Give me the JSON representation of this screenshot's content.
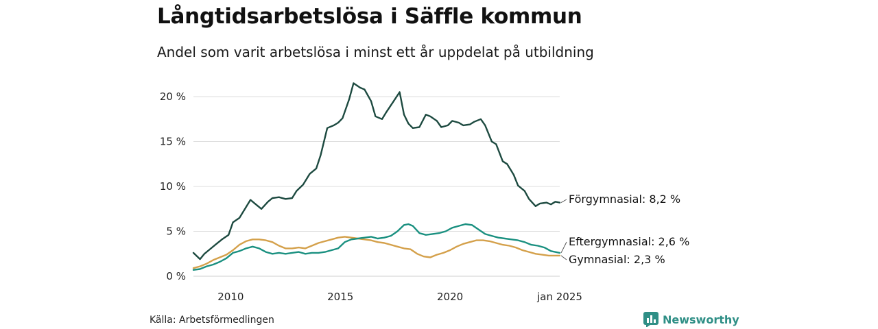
{
  "header": {
    "title": "Långtidsarbetslösa i Säffle kommun",
    "subtitle": "Andel som varit arbetslösa i minst ett år uppdelat på utbildning"
  },
  "footer": {
    "source": "Källa: Arbetsförmedlingen",
    "brand": "Newsworthy"
  },
  "colors": {
    "forgymnasial": "#1d4a40",
    "eftergymnasial": "#1a9080",
    "gymnasial": "#d4a04a",
    "grid": "#dddddd",
    "brand": "#2f8f86"
  },
  "chart_data": {
    "type": "line",
    "title": "Långtidsarbetslösa i Säffle kommun",
    "subtitle": "Andel som varit arbetslösa i minst ett år uppdelat på utbildning",
    "xlabel": "",
    "ylabel": "",
    "xlim": [
      2008.3,
      2025.0
    ],
    "ylim": [
      0,
      22
    ],
    "y_ticks": [
      {
        "value": 0,
        "label": "0 %"
      },
      {
        "value": 5,
        "label": "5 %"
      },
      {
        "value": 10,
        "label": "10 %"
      },
      {
        "value": 15,
        "label": "15 %"
      },
      {
        "value": 20,
        "label": "20 %"
      }
    ],
    "x_ticks": [
      {
        "value": 2010,
        "label": "2010"
      },
      {
        "value": 2015,
        "label": "2015"
      },
      {
        "value": 2020,
        "label": "2020"
      },
      {
        "value": 2025,
        "label": "jan 2025"
      }
    ],
    "grid": true,
    "series": [
      {
        "name": "Förgymnasial",
        "label": "Förgymnasial: 8,2 %",
        "color": "#1d4a40",
        "x": [
          2008.3,
          2008.6,
          2008.8,
          2009.0,
          2009.3,
          2009.6,
          2009.9,
          2010.1,
          2010.4,
          2010.6,
          2010.9,
          2011.1,
          2011.4,
          2011.7,
          2011.9,
          2012.2,
          2012.5,
          2012.8,
          2013.0,
          2013.3,
          2013.6,
          2013.9,
          2014.1,
          2014.4,
          2014.7,
          2014.9,
          2015.1,
          2015.4,
          2015.6,
          2015.9,
          2016.1,
          2016.4,
          2016.6,
          2016.9,
          2017.1,
          2017.4,
          2017.7,
          2017.9,
          2018.1,
          2018.3,
          2018.6,
          2018.9,
          2019.1,
          2019.4,
          2019.6,
          2019.9,
          2020.1,
          2020.4,
          2020.6,
          2020.9,
          2021.1,
          2021.4,
          2021.6,
          2021.9,
          2022.1,
          2022.4,
          2022.6,
          2022.9,
          2023.1,
          2023.4,
          2023.6,
          2023.9,
          2024.1,
          2024.4,
          2024.6,
          2024.8,
          2025.0
        ],
        "values": [
          2.6,
          1.9,
          2.5,
          2.9,
          3.5,
          4.1,
          4.6,
          6.0,
          6.5,
          7.3,
          8.5,
          8.1,
          7.5,
          8.3,
          8.7,
          8.8,
          8.6,
          8.7,
          9.5,
          10.2,
          11.4,
          12.0,
          13.5,
          16.5,
          16.8,
          17.1,
          17.6,
          19.7,
          21.5,
          21.0,
          20.8,
          19.5,
          17.8,
          17.5,
          18.3,
          19.4,
          20.5,
          18.0,
          17.0,
          16.5,
          16.6,
          18.0,
          17.8,
          17.3,
          16.6,
          16.8,
          17.3,
          17.1,
          16.8,
          16.9,
          17.2,
          17.5,
          16.8,
          15.0,
          14.7,
          12.8,
          12.5,
          11.3,
          10.1,
          9.5,
          8.6,
          7.8,
          8.1,
          8.2,
          8.0,
          8.3,
          8.2
        ]
      },
      {
        "name": "Eftergymnasial",
        "label": "Eftergymnasial: 2,6 %",
        "color": "#1a9080",
        "x": [
          2008.3,
          2008.6,
          2008.9,
          2009.2,
          2009.5,
          2009.8,
          2010.1,
          2010.4,
          2010.7,
          2011.0,
          2011.3,
          2011.6,
          2011.9,
          2012.2,
          2012.5,
          2012.8,
          2013.1,
          2013.4,
          2013.7,
          2014.0,
          2014.3,
          2014.6,
          2014.9,
          2015.2,
          2015.5,
          2015.8,
          2016.1,
          2016.4,
          2016.7,
          2017.0,
          2017.3,
          2017.6,
          2017.9,
          2018.1,
          2018.3,
          2018.6,
          2018.9,
          2019.2,
          2019.5,
          2019.8,
          2020.1,
          2020.4,
          2020.7,
          2021.0,
          2021.3,
          2021.6,
          2021.9,
          2022.2,
          2022.5,
          2022.8,
          2023.1,
          2023.4,
          2023.7,
          2024.0,
          2024.3,
          2024.6,
          2025.0
        ],
        "values": [
          0.7,
          0.8,
          1.1,
          1.3,
          1.6,
          2.0,
          2.6,
          2.8,
          3.1,
          3.3,
          3.1,
          2.7,
          2.5,
          2.6,
          2.5,
          2.6,
          2.7,
          2.5,
          2.6,
          2.6,
          2.7,
          2.9,
          3.1,
          3.8,
          4.1,
          4.2,
          4.3,
          4.4,
          4.2,
          4.3,
          4.5,
          5.0,
          5.7,
          5.8,
          5.6,
          4.8,
          4.6,
          4.7,
          4.8,
          5.0,
          5.4,
          5.6,
          5.8,
          5.7,
          5.2,
          4.7,
          4.5,
          4.3,
          4.2,
          4.1,
          4.0,
          3.8,
          3.5,
          3.4,
          3.2,
          2.8,
          2.6
        ]
      },
      {
        "name": "Gymnasial",
        "label": "Gymnasial: 2,3 %",
        "color": "#d4a04a",
        "x": [
          2008.3,
          2008.6,
          2008.9,
          2009.2,
          2009.5,
          2009.8,
          2010.1,
          2010.4,
          2010.7,
          2011.0,
          2011.3,
          2011.6,
          2011.9,
          2012.2,
          2012.5,
          2012.8,
          2013.1,
          2013.4,
          2013.7,
          2014.0,
          2014.3,
          2014.6,
          2014.9,
          2015.2,
          2015.5,
          2015.8,
          2016.1,
          2016.4,
          2016.7,
          2017.0,
          2017.3,
          2017.6,
          2017.9,
          2018.2,
          2018.5,
          2018.8,
          2019.1,
          2019.4,
          2019.7,
          2020.0,
          2020.3,
          2020.6,
          2020.9,
          2021.2,
          2021.5,
          2021.8,
          2022.1,
          2022.4,
          2022.7,
          2023.0,
          2023.3,
          2023.6,
          2023.9,
          2024.2,
          2024.5,
          2024.8,
          2025.0
        ],
        "values": [
          0.9,
          1.1,
          1.4,
          1.8,
          2.1,
          2.4,
          2.9,
          3.5,
          3.9,
          4.1,
          4.1,
          4.0,
          3.8,
          3.4,
          3.1,
          3.1,
          3.2,
          3.1,
          3.4,
          3.7,
          3.9,
          4.1,
          4.3,
          4.4,
          4.3,
          4.2,
          4.1,
          4.0,
          3.8,
          3.7,
          3.5,
          3.3,
          3.1,
          3.0,
          2.5,
          2.2,
          2.1,
          2.4,
          2.6,
          2.9,
          3.3,
          3.6,
          3.8,
          4.0,
          4.0,
          3.9,
          3.7,
          3.5,
          3.4,
          3.2,
          2.9,
          2.7,
          2.5,
          2.4,
          2.3,
          2.3,
          2.3
        ]
      }
    ]
  }
}
